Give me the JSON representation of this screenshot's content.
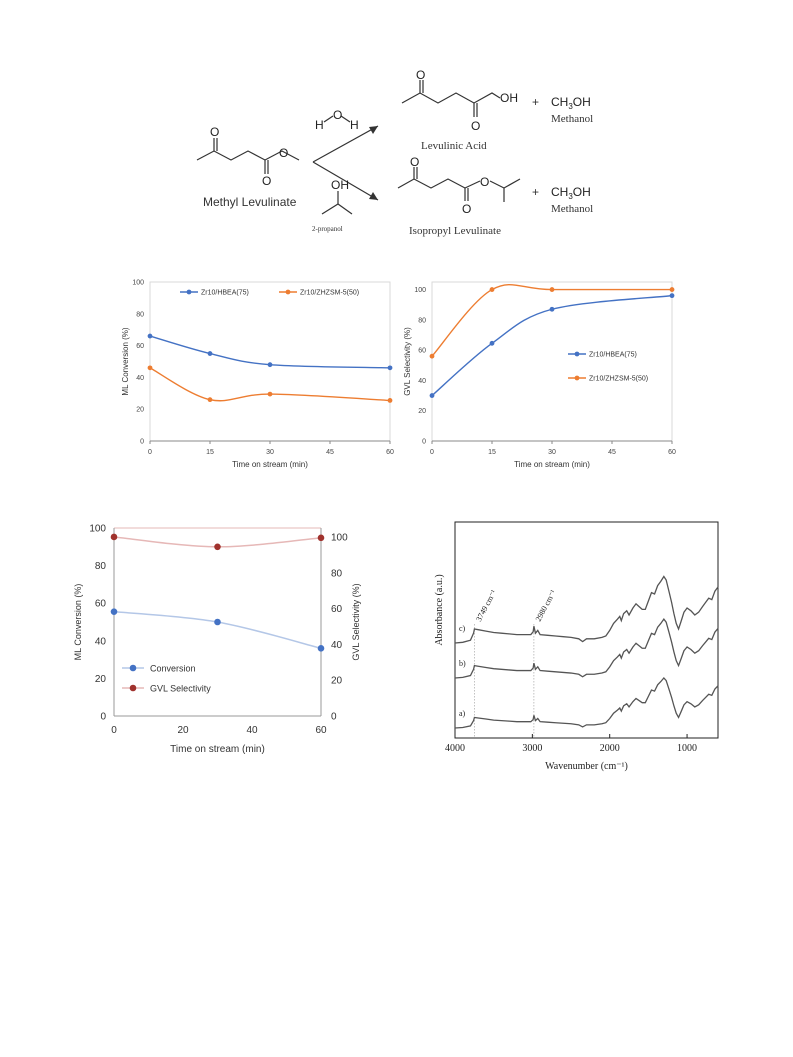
{
  "scheme": {
    "reactant": "Methyl Levulinate",
    "reagent_water": "H2O",
    "reagent_alcohol_label": "2-propanol",
    "reagent_alcohol_group": "OH",
    "product1": "Levulinic Acid",
    "product1_group": "OH",
    "product2": "Isopropyl Levulinate",
    "plus": "+",
    "byproduct_formula": "CH3OH",
    "byproduct_name": "Methanol",
    "atom_o": "O",
    "atom_h": "H"
  },
  "chart_data": [
    {
      "type": "line",
      "xlabel": "Time on stream (min)",
      "ylabel": "ML Conversion (%)",
      "x": [
        0,
        15,
        30,
        60
      ],
      "xticks": [
        0,
        15,
        30,
        45,
        60
      ],
      "xlim": [
        0,
        60
      ],
      "yticks": [
        0,
        20,
        40,
        60,
        80,
        100
      ],
      "ylim": [
        0,
        100
      ],
      "legend_position": "top",
      "series": [
        {
          "name": "Zr10/HBEA(75)",
          "values": [
            66,
            55,
            48,
            46
          ],
          "color": "#4472c4"
        },
        {
          "name": "Zr10/ZHZSM-5(50)",
          "values": [
            46,
            26,
            29.5,
            25.5
          ],
          "color": "#ed7d31"
        }
      ]
    },
    {
      "type": "line",
      "xlabel": "Time on stream (min)",
      "ylabel": "GVL Selectivity (%)",
      "x": [
        0,
        15,
        30,
        60
      ],
      "xticks": [
        0,
        15,
        30,
        45,
        60
      ],
      "xlim": [
        0,
        60
      ],
      "yticks": [
        0,
        20,
        40,
        60,
        80,
        100
      ],
      "ylim": [
        0,
        105
      ],
      "legend_position": "right",
      "series": [
        {
          "name": "Zr10/HBEA(75)",
          "values": [
            30,
            64.5,
            87,
            96
          ],
          "color": "#4472c4"
        },
        {
          "name": "Zr10/ZHZSM-5(50)",
          "values": [
            56,
            100,
            100,
            100
          ],
          "color": "#ed7d31"
        }
      ]
    },
    {
      "type": "line",
      "xlabel": "Time on stream (min)",
      "ylabel": "ML Conversion (%)",
      "y2label": "GVL Selectivity (%)",
      "x": [
        0,
        30,
        60
      ],
      "xticks": [
        0,
        20,
        40,
        60
      ],
      "xlim": [
        0,
        60
      ],
      "yticks": [
        0,
        20,
        40,
        60,
        80,
        100
      ],
      "ylim": [
        0,
        100
      ],
      "y2ticks": [
        0,
        20,
        40,
        60,
        80,
        100
      ],
      "y2lim": [
        0,
        105
      ],
      "legend_position": "bottom-left",
      "series": [
        {
          "name": "Conversion",
          "values": [
            55.5,
            50,
            36
          ],
          "axis": "left",
          "color": "#b4c7e7",
          "marker": "#4472c4"
        },
        {
          "name": "GVL Selectivity",
          "values": [
            100,
            94.5,
            99.5
          ],
          "axis": "right",
          "color": "#e6b8b7",
          "marker": "#a0322d"
        }
      ]
    },
    {
      "type": "line",
      "xlabel": "Wavenumber (cm-1)",
      "ylabel": "Absorbance (a.u.)",
      "xticks": [
        4000,
        3000,
        2000,
        1000
      ],
      "xlim": [
        4000,
        600
      ],
      "reversed_x": true,
      "annotations": [
        "3749 cm-1",
        "2980 cm-1"
      ],
      "annotation_positions": [
        3749,
        2980
      ],
      "series_labels": [
        "c)",
        "b)",
        "a)"
      ]
    }
  ]
}
